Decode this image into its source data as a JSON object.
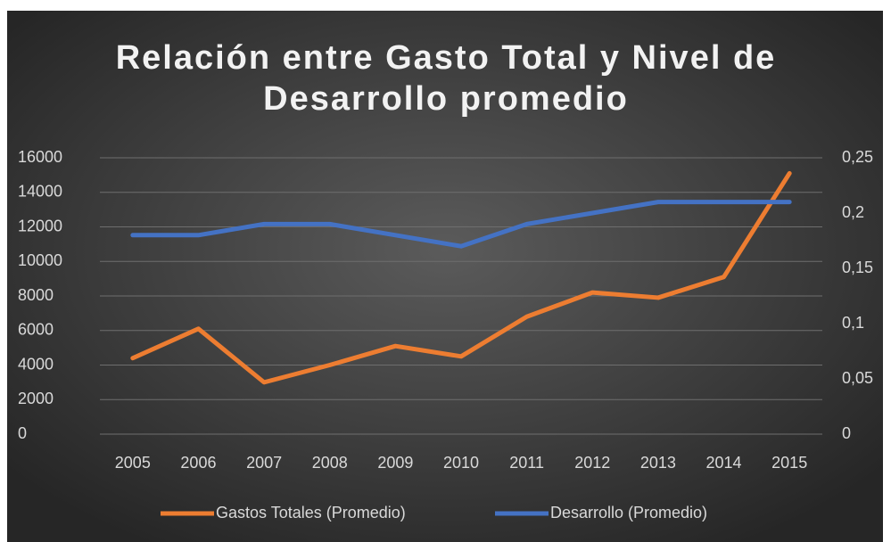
{
  "chart_data": {
    "type": "line",
    "title": "Relación entre Gasto Total y Nivel de Desarrollo promedio",
    "categories": [
      "2005",
      "2006",
      "2007",
      "2008",
      "2009",
      "2010",
      "2011",
      "2012",
      "2013",
      "2014",
      "2015"
    ],
    "series": [
      {
        "name": "Gastos Totales (Promedio)",
        "color": "#ed7d31",
        "values": [
          4400,
          6100,
          3000,
          4000,
          5100,
          4500,
          6800,
          8200,
          7900,
          9100,
          15100
        ]
      },
      {
        "name": "Desarrollo (Promedio)",
        "color": "#4472c4",
        "axis": "y2",
        "values": [
          0.18,
          0.18,
          0.19,
          0.19,
          0.18,
          0.17,
          0.19,
          0.2,
          0.21,
          0.21,
          0.21
        ]
      }
    ],
    "ylim": [
      0,
      16000
    ],
    "yticks": [
      0,
      2000,
      4000,
      6000,
      8000,
      10000,
      12000,
      14000,
      16000
    ],
    "y2lim": [
      0,
      0.25
    ],
    "y2ticks": [
      0,
      {
        "value": 0.05,
        "label": "0,05"
      },
      {
        "value": 0.1,
        "label": "0,1"
      },
      {
        "value": 0.15,
        "label": "0,15"
      },
      {
        "value": 0.2,
        "label": "0,2"
      },
      {
        "value": 0.25,
        "label": "0,25"
      }
    ],
    "grid": true,
    "legend": "bottom"
  }
}
